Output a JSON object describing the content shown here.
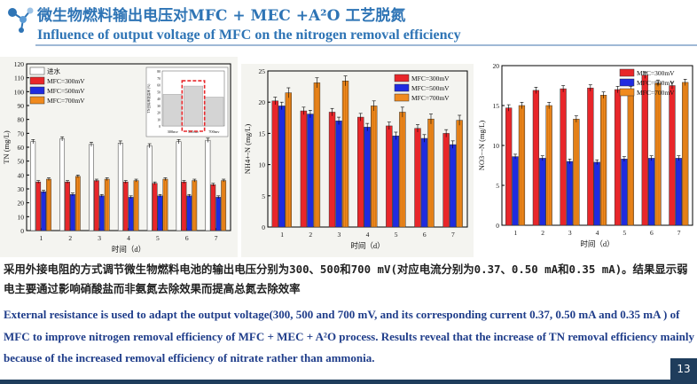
{
  "header": {
    "title_cn": "微生物燃料输出电压对MFC + MEC +A²O 工艺脱氮",
    "title_en": "Influence of output voltage of MFC on the nitrogen removal efficiency"
  },
  "colors": {
    "accent": "#2e74b5",
    "red": "#e8262a",
    "blue": "#1f2be0",
    "orange": "#f08a1e",
    "influent": "#ffffff"
  },
  "chart_data": [
    {
      "type": "bar",
      "ylabel": "TN (mg/L)",
      "xlabel": "时间（d）",
      "categories": [
        "1",
        "2",
        "3",
        "4",
        "5",
        "6",
        "7"
      ],
      "ylim": [
        0,
        120
      ],
      "yticks": [
        "0",
        "10",
        "20",
        "30",
        "40",
        "50",
        "60",
        "70",
        "80",
        "90",
        "100",
        "110",
        "120"
      ],
      "legend": "top-left",
      "series": [
        {
          "name": "进水",
          "values": [
            64,
            66,
            62,
            63,
            61,
            64,
            65
          ],
          "errors": [
            1.5,
            1.5,
            1.5,
            1.5,
            1.5,
            1.5,
            1.5
          ]
        },
        {
          "name": "MFC=300mV",
          "values": [
            35,
            35,
            36,
            35,
            34,
            35,
            33
          ],
          "errors": [
            1,
            1,
            1,
            1,
            1,
            1,
            1
          ]
        },
        {
          "name": "MFC=500mV",
          "values": [
            28,
            26,
            25,
            24,
            25,
            25,
            24
          ],
          "errors": [
            1,
            1,
            1,
            1,
            1,
            1,
            1
          ]
        },
        {
          "name": "MFC=700mV",
          "values": [
            37,
            39,
            37,
            36,
            37,
            36,
            36
          ],
          "errors": [
            1,
            1,
            1,
            1,
            1,
            1,
            1
          ]
        }
      ],
      "inset": {
        "ylabel": "TN去除率提高率 (%)",
        "categories": [
          "300mv",
          "500mv",
          "700mv"
        ],
        "values": [
          46,
          58,
          42
        ],
        "ylim": [
          0,
          80
        ],
        "yticks": [
          "0",
          "10",
          "20",
          "30",
          "40",
          "50",
          "60",
          "70",
          "80"
        ]
      }
    },
    {
      "type": "bar",
      "ylabel": "NH4+-N (mg/L)",
      "xlabel": "时间（d）",
      "categories": [
        "1",
        "2",
        "3",
        "4",
        "5",
        "6",
        "7"
      ],
      "ylim": [
        0,
        25
      ],
      "yticks": [
        "0",
        "5",
        "10",
        "15",
        "20",
        "25"
      ],
      "legend": "top-right",
      "series": [
        {
          "name": "MFC=300mV",
          "values": [
            20.2,
            18.6,
            18.4,
            17.6,
            16.2,
            15.8,
            15.0
          ],
          "errors": [
            0.6,
            0.6,
            0.6,
            0.6,
            0.6,
            0.6,
            0.6
          ]
        },
        {
          "name": "MFC=500mV",
          "values": [
            19.4,
            18.1,
            17.0,
            16.0,
            14.6,
            14.2,
            13.2
          ],
          "errors": [
            0.6,
            0.6,
            0.6,
            0.6,
            0.6,
            0.6,
            0.6
          ]
        },
        {
          "name": "MFC=700mV",
          "values": [
            21.5,
            23.1,
            23.4,
            19.4,
            18.4,
            17.3,
            17.1
          ],
          "errors": [
            0.8,
            0.8,
            0.8,
            0.8,
            0.8,
            0.8,
            0.8
          ]
        }
      ]
    },
    {
      "type": "bar",
      "ylabel": "NO3−-N (mg/L)",
      "xlabel": "时间（d）",
      "categories": [
        "1",
        "2",
        "3",
        "4",
        "5",
        "6",
        "7"
      ],
      "ylim": [
        0,
        20
      ],
      "yticks": [
        "0",
        "5",
        "10",
        "15",
        "20"
      ],
      "legend": "top-right",
      "series": [
        {
          "name": "MFC=300mV",
          "values": [
            14.7,
            16.9,
            17.1,
            17.2,
            17.0,
            18.8,
            17.5
          ],
          "errors": [
            0.4,
            0.4,
            0.4,
            0.4,
            0.4,
            0.4,
            0.4
          ]
        },
        {
          "name": "MFC=500mV",
          "values": [
            8.6,
            8.4,
            8.0,
            7.9,
            8.3,
            8.4,
            8.4
          ],
          "errors": [
            0.3,
            0.3,
            0.3,
            0.3,
            0.3,
            0.3,
            0.3
          ]
        },
        {
          "name": "MFC=700mV",
          "values": [
            15.0,
            15.0,
            13.3,
            16.3,
            17.0,
            17.8,
            17.9
          ],
          "errors": [
            0.4,
            0.4,
            0.4,
            0.4,
            0.4,
            0.4,
            0.4
          ]
        }
      ]
    }
  ],
  "text": {
    "body_cn": "采用外接电阻的方式调节微生物燃料电池的输出电压分别为300、500和700 mV(对应电流分别为0.37、0.50 mA和0.35 mA)。结果显示弱电主要通过影响硝酸盐而非氨氮去除效果而提高总氮去除效率",
    "body_en": "External resistance is used to adapt the output voltage(300, 500 and 700 mV, and its corresponding current 0.37,  0.50 mA and 0.35 mA ) of MFC to improve nitrogen removal efficiency of MFC + MEC + A²O process. Results reveal that the increase of TN removal efficiency mainly because of the  increased removal efficiency of nitrate rather than ammonia."
  },
  "footer": {
    "page": "13"
  }
}
